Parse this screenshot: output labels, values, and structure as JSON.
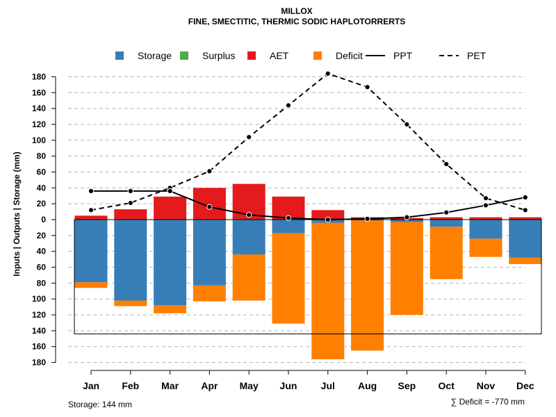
{
  "chart_data": {
    "type": "bar",
    "title": "MILLOX",
    "subtitle": "FINE, SMECTITIC, THERMIC SODIC HAPLOTORRERTS",
    "ylabel": "Inputs | Outputs | Storage    (mm)",
    "categories": [
      "Jan",
      "Feb",
      "Mar",
      "Apr",
      "May",
      "Jun",
      "Jul",
      "Aug",
      "Sep",
      "Oct",
      "Nov",
      "Dec"
    ],
    "ylim": [
      -180,
      190
    ],
    "yticks": [
      180,
      160,
      140,
      120,
      100,
      80,
      60,
      40,
      20,
      0,
      -20,
      -40,
      -60,
      -80,
      -100,
      -120,
      -140,
      -160,
      -180
    ],
    "ytick_labels": [
      "180",
      "160",
      "140",
      "120",
      "100",
      "80",
      "60",
      "40",
      "20",
      "0",
      "20",
      "40",
      "60",
      "80",
      "100",
      "120",
      "140",
      "160",
      "180"
    ],
    "grid": true,
    "legend": [
      {
        "name": "Storage",
        "kind": "square",
        "color": "#377EB8"
      },
      {
        "name": "Surplus",
        "kind": "square",
        "color": "#4DAF4A"
      },
      {
        "name": "AET",
        "kind": "square",
        "color": "#E41A1C"
      },
      {
        "name": "Deficit",
        "kind": "square",
        "color": "#FF7F00"
      },
      {
        "name": "PPT",
        "kind": "solid-line",
        "color": "#000000"
      },
      {
        "name": "PET",
        "kind": "dashed-line",
        "color": "#000000"
      }
    ],
    "series": [
      {
        "name": "AET",
        "color": "#E41A1C",
        "values": [
          5,
          13,
          29,
          40,
          45,
          29,
          12,
          3,
          2,
          3,
          3,
          3
        ]
      },
      {
        "name": "Storage",
        "color": "#377EB8",
        "values": [
          -79,
          -102,
          -108,
          -83,
          -44,
          -17,
          -4,
          -1,
          -3,
          -9,
          -24,
          -48
        ]
      },
      {
        "name": "Deficit",
        "color": "#FF7F00",
        "values": [
          -7,
          -7,
          -10,
          -20,
          -58,
          -114,
          -172,
          -164,
          -117,
          -66,
          -23,
          -8
        ]
      },
      {
        "name": "PPT",
        "color": "#000000",
        "values": [
          36,
          36,
          36,
          16,
          6,
          2,
          0,
          1,
          3,
          9,
          18,
          28
        ]
      },
      {
        "name": "PET",
        "color": "#000000",
        "values": [
          12,
          21,
          40,
          61,
          104,
          144,
          184,
          167,
          120,
          70,
          27,
          12
        ]
      }
    ],
    "storage_capacity": 144,
    "footer_left": "Storage: 144 mm",
    "footer_right": "∑ Deficit = -770 mm"
  }
}
